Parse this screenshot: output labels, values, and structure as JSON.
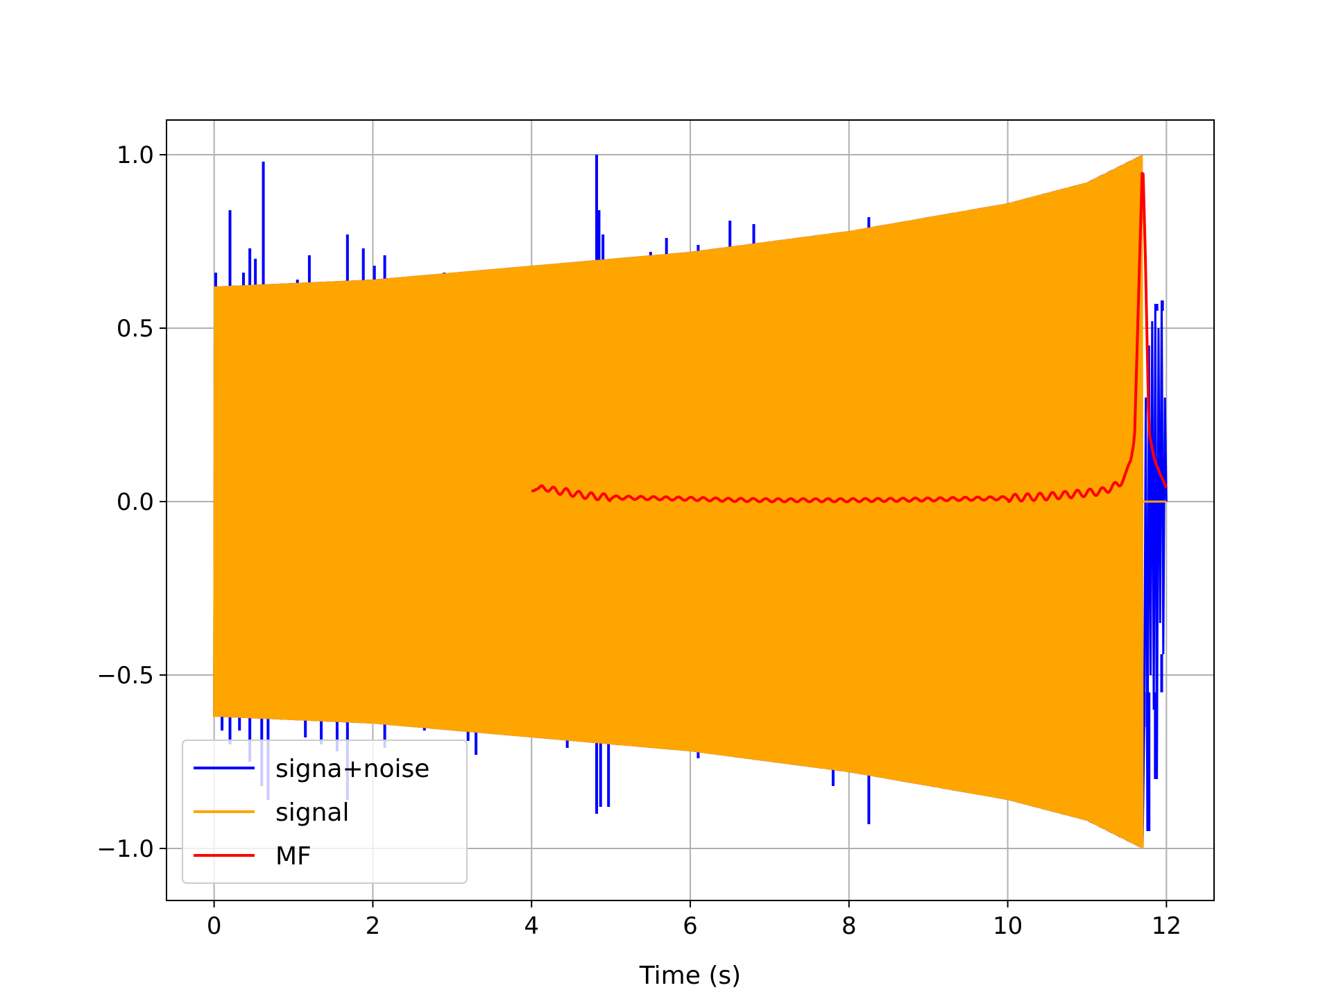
{
  "chart_data": {
    "type": "line",
    "title": "",
    "xlabel": "Time (s)",
    "ylabel": "",
    "xlim": [
      -0.6,
      12.6
    ],
    "ylim": [
      -1.15,
      1.1
    ],
    "grid": true,
    "legend_position": "lower-left",
    "x_ticks": [
      0,
      2,
      4,
      6,
      8,
      10,
      12
    ],
    "x_tick_labels": [
      "0",
      "2",
      "4",
      "6",
      "8",
      "10",
      "12"
    ],
    "y_ticks": [
      -1.0,
      -0.5,
      0.0,
      0.5,
      1.0
    ],
    "y_tick_labels": [
      "−1.0",
      "−0.5",
      "0.0",
      "0.5",
      "1.0"
    ],
    "series": [
      {
        "name": "signa+noise",
        "color": "#0000ff",
        "kind": "oscillation-with-spikes",
        "t_start": 0.0,
        "t_end": 12.0,
        "signal_end": 11.7,
        "envelope": [
          [
            0,
            0.62
          ],
          [
            2,
            0.64
          ],
          [
            4,
            0.68
          ],
          [
            6,
            0.72
          ],
          [
            8,
            0.78
          ],
          [
            10,
            0.86
          ],
          [
            11,
            0.92
          ],
          [
            11.7,
            1.0
          ]
        ],
        "spikes": [
          [
            0.02,
            0.66
          ],
          [
            0.1,
            0.55
          ],
          [
            0.2,
            0.84
          ],
          [
            0.27,
            0.6
          ],
          [
            0.37,
            0.66
          ],
          [
            0.45,
            0.73
          ],
          [
            0.52,
            0.7
          ],
          [
            0.62,
            0.98
          ],
          [
            0.78,
            0.62
          ],
          [
            1.05,
            0.64
          ],
          [
            1.2,
            0.71
          ],
          [
            1.4,
            0.6
          ],
          [
            1.68,
            0.77
          ],
          [
            1.88,
            0.73
          ],
          [
            2.02,
            0.68
          ],
          [
            2.15,
            0.71
          ],
          [
            2.9,
            0.66
          ],
          [
            3.5,
            0.66
          ],
          [
            4.82,
            1.0
          ],
          [
            4.85,
            0.84
          ],
          [
            4.9,
            0.77
          ],
          [
            5.5,
            0.72
          ],
          [
            5.7,
            0.76
          ],
          [
            6.1,
            0.74
          ],
          [
            6.5,
            0.81
          ],
          [
            6.8,
            0.8
          ],
          [
            8.25,
            0.82
          ],
          [
            11.88,
            0.57
          ],
          [
            11.95,
            0.58
          ],
          [
            0.1,
            -0.66
          ],
          [
            0.2,
            -0.7
          ],
          [
            0.32,
            -0.66
          ],
          [
            0.45,
            -0.75
          ],
          [
            0.6,
            -0.82
          ],
          [
            0.68,
            -0.86
          ],
          [
            1.15,
            -0.68
          ],
          [
            1.35,
            -0.7
          ],
          [
            1.55,
            -0.72
          ],
          [
            1.68,
            -0.86
          ],
          [
            2.15,
            -0.71
          ],
          [
            2.65,
            -0.66
          ],
          [
            3.2,
            -0.69
          ],
          [
            3.3,
            -0.73
          ],
          [
            4.45,
            -0.71
          ],
          [
            4.82,
            -0.9
          ],
          [
            4.87,
            -0.88
          ],
          [
            4.97,
            -0.88
          ],
          [
            6.1,
            -0.74
          ],
          [
            7.8,
            -0.82
          ],
          [
            8.25,
            -0.93
          ],
          [
            8.65,
            -0.8
          ],
          [
            11.72,
            -0.65
          ],
          [
            11.78,
            -0.95
          ],
          [
            11.86,
            -0.8
          ],
          [
            11.94,
            -0.44
          ]
        ]
      },
      {
        "name": "signal",
        "color": "#ffa500",
        "kind": "oscillation",
        "t_start": 0.0,
        "t_end": 12.0,
        "signal_end": 11.7,
        "envelope": [
          [
            0,
            0.62
          ],
          [
            2,
            0.64
          ],
          [
            4,
            0.68
          ],
          [
            6,
            0.72
          ],
          [
            8,
            0.78
          ],
          [
            10,
            0.86
          ],
          [
            11,
            0.92
          ],
          [
            11.7,
            1.0
          ]
        ],
        "tail_value": 0.0
      },
      {
        "name": "MF",
        "color": "#ff0000",
        "kind": "curve",
        "points": [
          [
            4.0,
            0.03
          ],
          [
            4.05,
            0.045
          ],
          [
            4.1,
            0.035
          ],
          [
            4.2,
            0.04
          ],
          [
            4.3,
            0.03
          ],
          [
            4.4,
            0.03
          ],
          [
            4.6,
            0.02
          ],
          [
            4.8,
            0.015
          ],
          [
            5.0,
            0.012
          ],
          [
            5.5,
            0.01
          ],
          [
            6.0,
            0.008
          ],
          [
            6.5,
            0.005
          ],
          [
            7.0,
            0.004
          ],
          [
            7.5,
            0.004
          ],
          [
            8.0,
            0.004
          ],
          [
            8.5,
            0.005
          ],
          [
            9.0,
            0.006
          ],
          [
            9.5,
            0.008
          ],
          [
            10.0,
            0.01
          ],
          [
            10.5,
            0.015
          ],
          [
            11.0,
            0.025
          ],
          [
            11.2,
            0.03
          ],
          [
            11.4,
            0.05
          ],
          [
            11.5,
            0.08
          ],
          [
            11.55,
            0.12
          ],
          [
            11.6,
            0.2
          ],
          [
            11.65,
            0.6
          ],
          [
            11.7,
            1.0
          ],
          [
            11.73,
            0.75
          ],
          [
            11.78,
            0.2
          ],
          [
            11.85,
            0.12
          ],
          [
            11.92,
            0.08
          ],
          [
            12.0,
            0.04
          ]
        ]
      }
    ]
  }
}
